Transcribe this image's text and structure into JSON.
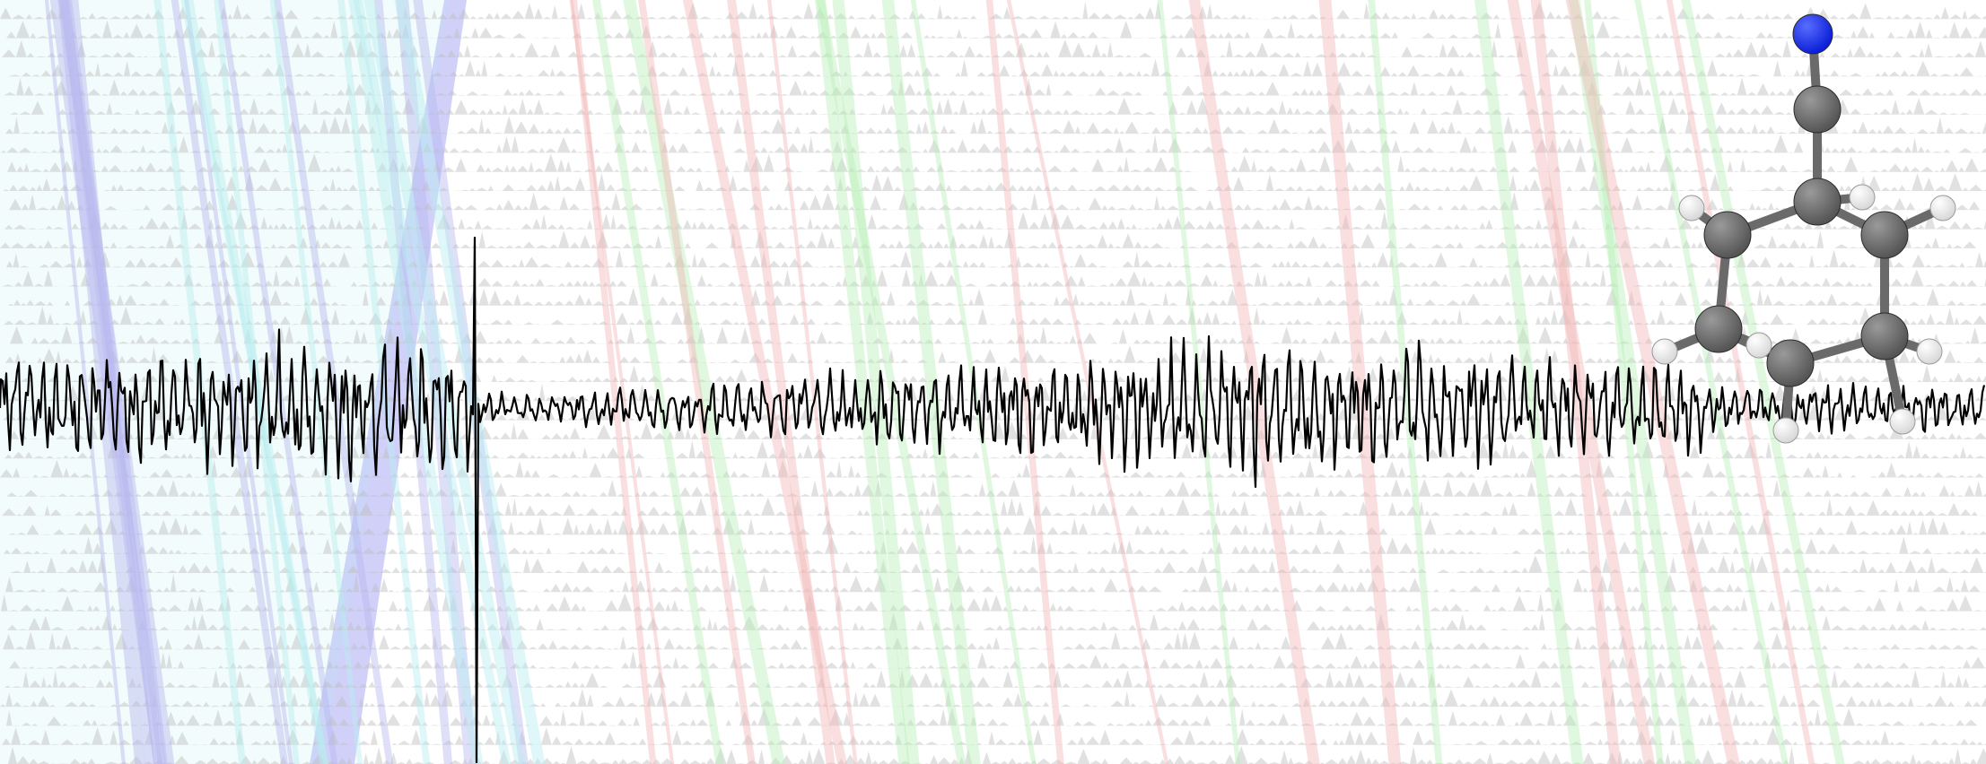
{
  "figure": {
    "panels": [
      {
        "name": "background-spectral-stack",
        "colors": {
          "gray": "#bdbdbd",
          "blue": "#b8b8f0",
          "cyan": "#b8eef0",
          "green": "#b8f0b8",
          "red": "#f2b8b8",
          "band": "#c8c8f8"
        }
      },
      {
        "name": "fid-waveform",
        "color": "#000000"
      },
      {
        "name": "molecule-model",
        "colors": {
          "carbon": "#555555",
          "nitrogen": "#0a1fd8",
          "hydrogen": "#d8d8d8",
          "bond": "#6a6a6a"
        }
      }
    ]
  }
}
